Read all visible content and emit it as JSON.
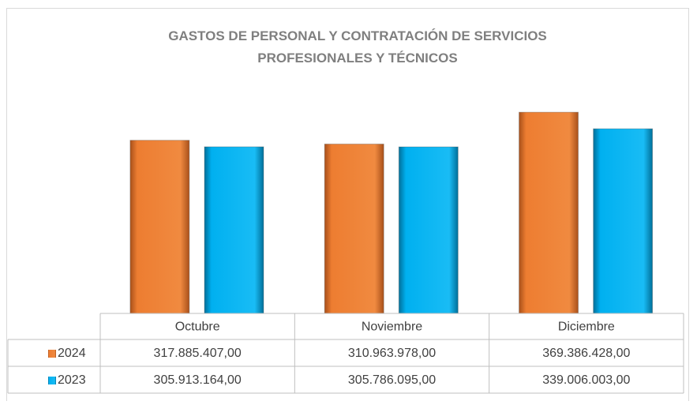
{
  "chart_data": {
    "type": "bar",
    "title": "GASTOS DE PERSONAL Y CONTRATACIÓN DE SERVICIOS PROFESIONALES Y TÉCNICOS",
    "categories": [
      "Octubre",
      "Noviembre",
      "Diciembre"
    ],
    "series": [
      {
        "name": "2024",
        "color": "#ed7d31",
        "values": [
          317885407.0,
          310963978.0,
          369386428.0
        ],
        "value_labels": [
          "317.885.407,00",
          "310.963.978,00",
          "369.386.428,00"
        ]
      },
      {
        "name": "2023",
        "color": "#00b0f0",
        "values": [
          305913164.0,
          305786095.0,
          339006003.0
        ],
        "value_labels": [
          "305.913.164,00",
          "305.786.095,00",
          "339.006.003,00"
        ]
      }
    ],
    "ylim": [
      0,
      400000000
    ]
  }
}
